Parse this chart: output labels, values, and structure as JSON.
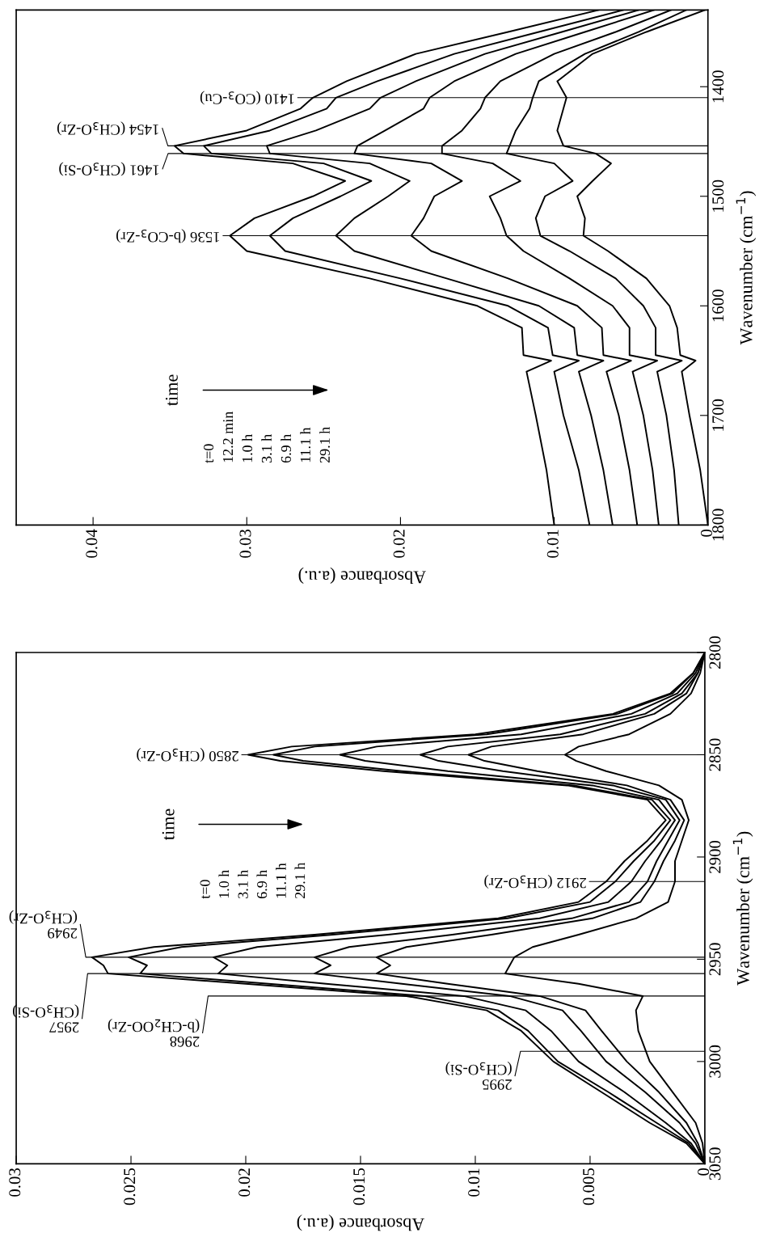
{
  "chart_data": [
    {
      "type": "line",
      "xlabel": "Absorbance (a.u.)",
      "ylabel": "Wavenumber (cm$^{−1}$)",
      "series": [
        {
          "color": "#000000",
          "x": [
            0.01,
            0.0105,
            0.0112,
            0.0118,
            0.0102,
            0.012,
            0.0121,
            0.015,
            0.022,
            0.03,
            0.0311,
            0.0295,
            0.0257,
            0.0236,
            0.027,
            0.0341,
            0.0347,
            0.03,
            0.0265,
            0.0257,
            0.0235,
            0.019,
            0.013,
            0.0071
          ],
          "values": [
            1800,
            1750,
            1700,
            1660,
            1650,
            1645,
            1620,
            1600,
            1575,
            1550,
            1536,
            1520,
            1500,
            1486,
            1470,
            1461,
            1454,
            1440,
            1420,
            1410,
            1395,
            1370,
            1350,
            1330
          ]
        },
        {
          "color": "#000000",
          "x": [
            0.0077,
            0.0084,
            0.0094,
            0.01,
            0.0084,
            0.0101,
            0.0104,
            0.013,
            0.02,
            0.0275,
            0.0285,
            0.027,
            0.0239,
            0.0219,
            0.025,
            0.0323,
            0.0328,
            0.0285,
            0.0248,
            0.0242,
            0.0215,
            0.0165,
            0.011,
            0.0055
          ],
          "values": [
            1800,
            1750,
            1700,
            1660,
            1650,
            1645,
            1620,
            1600,
            1575,
            1550,
            1536,
            1520,
            1500,
            1486,
            1470,
            1461,
            1454,
            1440,
            1420,
            1410,
            1395,
            1370,
            1350,
            1330
          ]
        },
        {
          "color": "#000000",
          "x": [
            0.0062,
            0.0068,
            0.0076,
            0.0084,
            0.0068,
            0.0085,
            0.0087,
            0.011,
            0.017,
            0.023,
            0.0242,
            0.023,
            0.0208,
            0.0194,
            0.022,
            0.0285,
            0.0287,
            0.0255,
            0.022,
            0.0213,
            0.019,
            0.0145,
            0.0095,
            0.0045
          ],
          "values": [
            1800,
            1750,
            1700,
            1660,
            1650,
            1645,
            1620,
            1600,
            1575,
            1550,
            1536,
            1520,
            1500,
            1486,
            1470,
            1461,
            1454,
            1440,
            1420,
            1410,
            1395,
            1370,
            1350,
            1330
          ]
        },
        {
          "color": "#000000",
          "x": [
            0.0046,
            0.0051,
            0.0058,
            0.0066,
            0.005,
            0.0068,
            0.0069,
            0.0085,
            0.013,
            0.018,
            0.0193,
            0.0185,
            0.0178,
            0.016,
            0.018,
            0.023,
            0.0228,
            0.021,
            0.0185,
            0.0181,
            0.0165,
            0.0125,
            0.008,
            0.0035
          ],
          "values": [
            1800,
            1750,
            1700,
            1660,
            1650,
            1645,
            1620,
            1600,
            1575,
            1550,
            1536,
            1520,
            1500,
            1486,
            1470,
            1461,
            1454,
            1440,
            1420,
            1410,
            1395,
            1370,
            1350,
            1330
          ]
        },
        {
          "color": "#000000",
          "x": [
            0.0032,
            0.0036,
            0.0042,
            0.0049,
            0.0033,
            0.0051,
            0.0051,
            0.0062,
            0.009,
            0.012,
            0.0131,
            0.0135,
            0.0142,
            0.0122,
            0.014,
            0.0173,
            0.0173,
            0.016,
            0.0148,
            0.0145,
            0.0135,
            0.01,
            0.006,
            0.0024
          ],
          "values": [
            1800,
            1750,
            1700,
            1660,
            1650,
            1645,
            1620,
            1600,
            1575,
            1550,
            1536,
            1520,
            1500,
            1486,
            1470,
            1461,
            1454,
            1440,
            1420,
            1410,
            1395,
            1370,
            1350,
            1330
          ]
        },
        {
          "color": "#000000",
          "x": [
            0.0019,
            0.0022,
            0.0027,
            0.0033,
            0.0017,
            0.0034,
            0.0034,
            0.0042,
            0.006,
            0.009,
            0.0109,
            0.0112,
            0.0106,
            0.0088,
            0.01,
            0.0131,
            0.0129,
            0.0125,
            0.0116,
            0.0114,
            0.011,
            0.008,
            0.0045,
            0.0014
          ],
          "values": [
            1800,
            1750,
            1700,
            1660,
            1650,
            1645,
            1620,
            1600,
            1575,
            1550,
            1536,
            1520,
            1500,
            1486,
            1470,
            1461,
            1454,
            1440,
            1420,
            1410,
            1395,
            1370,
            1350,
            1330
          ]
        },
        {
          "color": "#000000",
          "x": [
            0.0,
            0.0005,
            0.0012,
            0.0017,
            0.0008,
            0.0018,
            0.002,
            0.0025,
            0.004,
            0.0065,
            0.0081,
            0.008,
            0.0085,
            0.0075,
            0.0063,
            0.0073,
            0.0094,
            0.0098,
            0.0094,
            0.0092,
            0.0098,
            0.0075,
            0.004,
            0.0002
          ],
          "values": [
            1800,
            1750,
            1700,
            1660,
            1650,
            1645,
            1620,
            1600,
            1575,
            1550,
            1536,
            1520,
            1500,
            1486,
            1470,
            1461,
            1454,
            1440,
            1420,
            1410,
            1395,
            1370,
            1350,
            1330
          ]
        }
      ],
      "xlim": [
        0.045,
        0
      ],
      "xticks": [
        0,
        0.01,
        0.02,
        0.03,
        0.04
      ],
      "ylim": [
        1800,
        1330
      ],
      "yticks": [
        1800,
        1700,
        1600,
        1500,
        1400
      ],
      "ref_lines": [
        {
          "axis": "y",
          "value": 1536,
          "label": "1536 (b-CO$_{3}$-Zr)",
          "color": "#000000"
        },
        {
          "axis": "y",
          "value": 1461,
          "label": "1461 (CH$_{3}$O-Si)",
          "color": "#000000"
        },
        {
          "axis": "y",
          "value": 1454,
          "label": "1454 (CH$_{3}$O-Zr)",
          "color": "#000000"
        },
        {
          "axis": "y",
          "value": 1410,
          "label": "1410 (CO$_{3}$-Cu)",
          "color": "#000000"
        }
      ],
      "annotations": [
        "time",
        "t=0",
        "12.2 min",
        "1.0 h",
        "3.1 h",
        "6.9 h",
        "11.1 h",
        "29.1 h"
      ]
    },
    {
      "type": "line",
      "xlabel": "Absorbance (a.u.)",
      "ylabel": "Wavenumber (cm$^{−1}$)",
      "series": [
        {
          "color": "#000000",
          "x": [
            0,
            0.0008,
            0.0024,
            0.0045,
            0.0066,
            0.008,
            0.0095,
            0.013,
            0.02,
            0.026,
            0.0262,
            0.0267,
            0.024,
            0.017,
            0.009,
            0.0055,
            0.0043,
            0.0035,
            0.0025,
            0.0017,
            0.0025,
            0.006,
            0.014,
            0.0185,
            0.0199,
            0.018,
            0.01,
            0.004,
            0.0015,
            0.0005,
            0
          ],
          "values": [
            3050,
            3040,
            3030,
            3015,
            3000,
            2985,
            2975,
            2968,
            2962,
            2957,
            2953,
            2949,
            2944,
            2938,
            2930,
            2922,
            2912,
            2902,
            2892,
            2882,
            2872,
            2865,
            2858,
            2853,
            2850,
            2846,
            2840,
            2830,
            2820,
            2810,
            2800
          ]
        },
        {
          "color": "#000000",
          "x": [
            0,
            0.0007,
            0.0021,
            0.0042,
            0.0064,
            0.0077,
            0.009,
            0.0122,
            0.019,
            0.0246,
            0.0243,
            0.0251,
            0.0228,
            0.0162,
            0.0086,
            0.005,
            0.0039,
            0.0031,
            0.0022,
            0.0015,
            0.0023,
            0.0057,
            0.0132,
            0.0175,
            0.0188,
            0.017,
            0.0095,
            0.0038,
            0.0014,
            0.0005,
            0
          ],
          "values": [
            3050,
            3040,
            3030,
            3015,
            3000,
            2985,
            2975,
            2968,
            2962,
            2957,
            2953,
            2949,
            2944,
            2938,
            2930,
            2922,
            2912,
            2902,
            2892,
            2882,
            2872,
            2865,
            2858,
            2853,
            2850,
            2846,
            2840,
            2830,
            2820,
            2810,
            2800
          ]
        },
        {
          "color": "#000000",
          "x": [
            0,
            0.0006,
            0.0017,
            0.0035,
            0.0055,
            0.0067,
            0.0078,
            0.0105,
            0.0165,
            0.0212,
            0.0208,
            0.0214,
            0.0195,
            0.0138,
            0.0072,
            0.0042,
            0.0032,
            0.0026,
            0.0019,
            0.0013,
            0.002,
            0.0049,
            0.0112,
            0.0148,
            0.0159,
            0.0143,
            0.008,
            0.0032,
            0.0012,
            0.0004,
            0
          ],
          "values": [
            3050,
            3040,
            3030,
            3015,
            3000,
            2985,
            2975,
            2968,
            2962,
            2957,
            2953,
            2949,
            2944,
            2938,
            2930,
            2922,
            2912,
            2902,
            2892,
            2882,
            2872,
            2865,
            2858,
            2853,
            2850,
            2846,
            2840,
            2830,
            2820,
            2810,
            2800
          ]
        },
        {
          "color": "#000000",
          "x": [
            0,
            0.0004,
            0.0011,
            0.0026,
            0.0043,
            0.0054,
            0.0062,
            0.0085,
            0.0132,
            0.017,
            0.0163,
            0.017,
            0.0155,
            0.011,
            0.0058,
            0.0033,
            0.0025,
            0.0021,
            0.0016,
            0.0011,
            0.0017,
            0.004,
            0.0088,
            0.0116,
            0.0124,
            0.0112,
            0.0063,
            0.0026,
            0.001,
            0.0003,
            0
          ],
          "values": [
            3050,
            3040,
            3030,
            3015,
            3000,
            2985,
            2975,
            2968,
            2962,
            2957,
            2953,
            2949,
            2944,
            2938,
            2930,
            2922,
            2912,
            2902,
            2892,
            2882,
            2872,
            2865,
            2858,
            2853,
            2850,
            2846,
            2840,
            2830,
            2820,
            2810,
            2800
          ]
        },
        {
          "color": "#000000",
          "x": [
            0,
            0.0003,
            0.0008,
            0.002,
            0.0034,
            0.0045,
            0.0052,
            0.0072,
            0.0112,
            0.0143,
            0.0137,
            0.0143,
            0.013,
            0.0093,
            0.0049,
            0.0028,
            0.0022,
            0.0018,
            0.0013,
            0.0009,
            0.0015,
            0.0034,
            0.0073,
            0.0096,
            0.0103,
            0.0093,
            0.0053,
            0.0022,
            0.0008,
            0.0003,
            0
          ],
          "values": [
            3050,
            3040,
            3030,
            3015,
            3000,
            2985,
            2975,
            2968,
            2962,
            2957,
            2953,
            2949,
            2944,
            2938,
            2930,
            2922,
            2912,
            2902,
            2892,
            2882,
            2872,
            2865,
            2858,
            2853,
            2850,
            2846,
            2840,
            2830,
            2820,
            2810,
            2800
          ]
        },
        {
          "color": "#000000",
          "x": [
            0,
            0.0001,
            0.0004,
            0.0014,
            0.0024,
            0.0029,
            0.003,
            0.0027,
            0.0055,
            0.0087,
            0.0085,
            0.0083,
            0.0075,
            0.0055,
            0.003,
            0.0016,
            0.0013,
            0.0013,
            0.001,
            0.0007,
            0.001,
            0.002,
            0.0043,
            0.0056,
            0.0061,
            0.0055,
            0.0033,
            0.0015,
            0.0006,
            0.0002,
            0
          ],
          "values": [
            3050,
            3040,
            3030,
            3015,
            3000,
            2985,
            2975,
            2968,
            2962,
            2957,
            2953,
            2949,
            2944,
            2938,
            2930,
            2922,
            2912,
            2902,
            2892,
            2882,
            2872,
            2865,
            2858,
            2853,
            2850,
            2846,
            2840,
            2830,
            2820,
            2810,
            2800
          ]
        }
      ],
      "xlim": [
        0.03,
        0
      ],
      "xticks": [
        0,
        0.005,
        0.01,
        0.015,
        0.02,
        0.025,
        0.03
      ],
      "ylim": [
        3050,
        2800
      ],
      "yticks": [
        3050,
        3000,
        2950,
        2900,
        2850,
        2800
      ],
      "ref_lines": [
        {
          "axis": "y",
          "value": 2995,
          "label": "2995\n(CH$_{3}$O-Si)",
          "color": "#000000"
        },
        {
          "axis": "y",
          "value": 2968,
          "label": "2968\n(b-CH$_{2}$OO-Zr)",
          "color": "#000000"
        },
        {
          "axis": "y",
          "value": 2957,
          "label": "2957\n(CH$_{3}$O-Si)",
          "color": "#000000"
        },
        {
          "axis": "y",
          "value": 2949,
          "label": "2949\n(CH$_{3}$O-Zr)",
          "color": "#000000"
        },
        {
          "axis": "y",
          "value": 2912,
          "label": "2912 (CH$_{3}$O-Zr)",
          "color": "#000000"
        },
        {
          "axis": "y",
          "value": 2850,
          "label": "2850 (CH$_{3}$O-Zr)",
          "color": "#000000"
        }
      ],
      "annotations": [
        "time",
        "t=0",
        "1.0 h",
        "3.1 h",
        "6.9 h",
        "11.1 h",
        "29.1 h"
      ]
    }
  ]
}
